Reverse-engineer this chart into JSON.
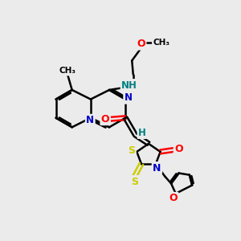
{
  "background_color": "#ebebeb",
  "atom_colors": {
    "C": "#000000",
    "N": "#0000cc",
    "O": "#ff0000",
    "S": "#cccc00",
    "H": "#008080"
  },
  "bond_color": "#000000",
  "bond_width": 1.8,
  "figsize": [
    3.0,
    3.0
  ],
  "dpi": 100,
  "xlim": [
    0,
    10
  ],
  "ylim": [
    0,
    10
  ]
}
